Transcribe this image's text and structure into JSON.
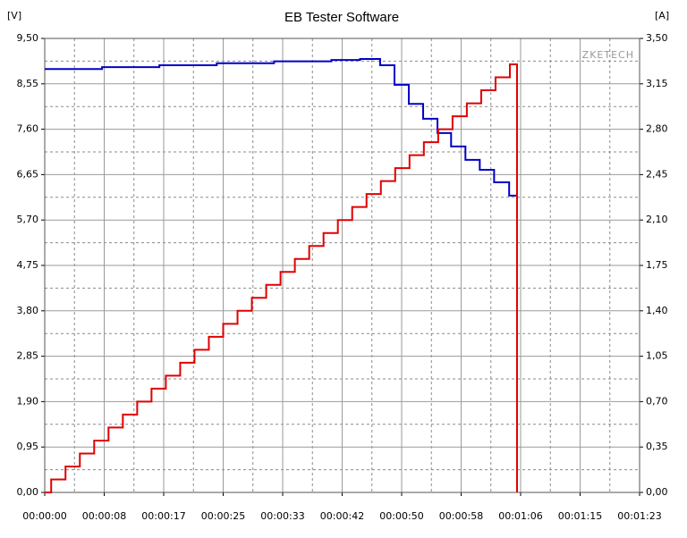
{
  "chart_data": {
    "type": "line",
    "step": true,
    "title": "EB Tester Software",
    "y_label": "[V]",
    "y2_label": "[A]",
    "watermark": "ZKETECH",
    "grid": true,
    "xlim": [
      0,
      83
    ],
    "xticks": [
      {
        "value": 0,
        "label": "00:00:00"
      },
      {
        "value": 8.3,
        "label": "00:00:08"
      },
      {
        "value": 16.6,
        "label": "00:00:17"
      },
      {
        "value": 24.9,
        "label": "00:00:25"
      },
      {
        "value": 33.2,
        "label": "00:00:33"
      },
      {
        "value": 41.5,
        "label": "00:00:42"
      },
      {
        "value": 49.8,
        "label": "00:00:50"
      },
      {
        "value": 58.1,
        "label": "00:00:58"
      },
      {
        "value": 66.4,
        "label": "00:01:06"
      },
      {
        "value": 74.7,
        "label": "00:01:15"
      },
      {
        "value": 83,
        "label": "00:01:23"
      }
    ],
    "ylim": [
      0,
      9.5
    ],
    "yticks": [
      {
        "value": 0,
        "label": "0,00"
      },
      {
        "value": 0.95,
        "label": "0,95"
      },
      {
        "value": 1.9,
        "label": "1,90"
      },
      {
        "value": 2.85,
        "label": "2,85"
      },
      {
        "value": 3.8,
        "label": "3,80"
      },
      {
        "value": 4.75,
        "label": "4,75"
      },
      {
        "value": 5.7,
        "label": "5,70"
      },
      {
        "value": 6.65,
        "label": "6,65"
      },
      {
        "value": 7.6,
        "label": "7,60"
      },
      {
        "value": 8.55,
        "label": "8,55"
      },
      {
        "value": 9.5,
        "label": "9,50"
      }
    ],
    "y2lim": [
      0,
      3.5
    ],
    "y2ticks": [
      {
        "value": 0,
        "label": "0,00"
      },
      {
        "value": 0.35,
        "label": "0,35"
      },
      {
        "value": 0.7,
        "label": "0,70"
      },
      {
        "value": 1.05,
        "label": "1,05"
      },
      {
        "value": 1.4,
        "label": "1,40"
      },
      {
        "value": 1.75,
        "label": "1,75"
      },
      {
        "value": 2.1,
        "label": "2,10"
      },
      {
        "value": 2.45,
        "label": "2,45"
      },
      {
        "value": 2.8,
        "label": "2,80"
      },
      {
        "value": 3.15,
        "label": "3,15"
      },
      {
        "value": 3.5,
        "label": "3,50"
      }
    ],
    "series": [
      {
        "color": "#0000c8",
        "axis": "y",
        "x": [
          0,
          8,
          16,
          24,
          32,
          40,
          44,
          46.8,
          48.8,
          50.8,
          52.8,
          54.8,
          56.7,
          58.7,
          60.7,
          62.7,
          64.8,
          65.8
        ],
        "values": [
          8.86,
          8.9,
          8.94,
          8.98,
          9.02,
          9.05,
          9.07,
          8.94,
          8.53,
          8.13,
          7.82,
          7.52,
          7.24,
          6.96,
          6.75,
          6.49,
          6.21,
          6.21
        ]
      },
      {
        "color": "#e00000",
        "axis": "y2",
        "x": [
          0,
          0.9,
          2.9,
          4.9,
          6.9,
          8.9,
          10.9,
          12.9,
          14.9,
          16.9,
          18.9,
          20.9,
          22.9,
          24.9,
          26.9,
          28.9,
          30.9,
          32.9,
          34.9,
          36.9,
          38.9,
          40.9,
          42.9,
          44.9,
          46.9,
          48.9,
          50.9,
          52.9,
          54.9,
          56.9,
          58.9,
          60.9,
          62.9,
          64.9,
          65.9
        ],
        "values": [
          0,
          0.1,
          0.2,
          0.3,
          0.4,
          0.5,
          0.6,
          0.7,
          0.8,
          0.9,
          1.0,
          1.1,
          1.2,
          1.3,
          1.4,
          1.5,
          1.6,
          1.7,
          1.8,
          1.9,
          2.0,
          2.1,
          2.2,
          2.3,
          2.4,
          2.5,
          2.6,
          2.7,
          2.8,
          2.9,
          3.0,
          3.1,
          3.2,
          3.3,
          0
        ]
      }
    ]
  }
}
